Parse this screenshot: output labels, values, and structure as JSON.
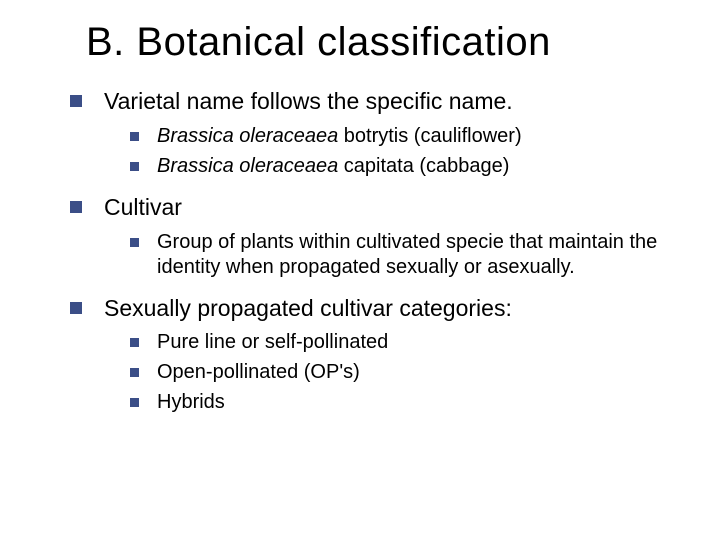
{
  "title": "B. Botanical classification",
  "colors": {
    "bullet": "#3b4e87",
    "text": "#000000",
    "background": "#ffffff"
  },
  "typography": {
    "title_fontsize": 40,
    "level1_fontsize": 23,
    "level2_fontsize": 20,
    "font_family": "Verdana"
  },
  "sections": [
    {
      "heading": "Varietal name follows the specific name.",
      "items": [
        {
          "italic": "Brassica oleraceaea ",
          "rest": " botrytis  (cauliflower)"
        },
        {
          "italic": "Brassica oleraceaea ",
          "rest": " capitata  (cabbage)"
        }
      ]
    },
    {
      "heading": "Cultivar",
      "items": [
        {
          "plain": "Group of plants within cultivated specie that maintain the identity when propagated sexually or asexually."
        }
      ]
    },
    {
      "heading": "Sexually propagated cultivar categories:",
      "items": [
        {
          "plain": "Pure line or self-pollinated"
        },
        {
          "plain": "Open-pollinated (OP's)"
        },
        {
          "plain": "Hybrids"
        }
      ]
    }
  ]
}
